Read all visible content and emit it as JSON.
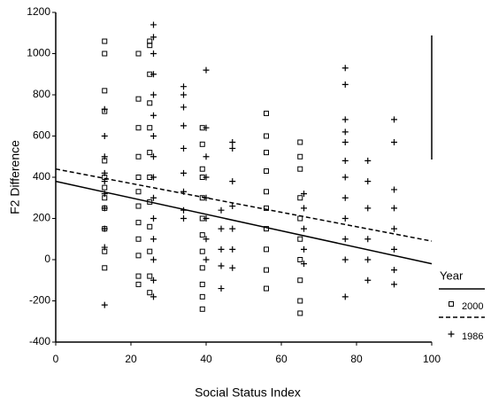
{
  "chart_data": {
    "type": "scatter",
    "x_label": "Social Status Index",
    "y_label": "F2 Difference",
    "legend_title": "Year",
    "xlim": [
      0,
      100
    ],
    "xticks": [
      0,
      20,
      40,
      60,
      80,
      100
    ],
    "ylim": [
      -400,
      1200
    ],
    "yticks": [
      -400,
      -200,
      0,
      200,
      400,
      600,
      800,
      1000,
      1200
    ],
    "series": [
      {
        "name": "2000",
        "color": "#000000",
        "marker": "square",
        "x": [
          13,
          13,
          13,
          13,
          13,
          13,
          13,
          13,
          13,
          13,
          13,
          13,
          22,
          22,
          22,
          22,
          22,
          22,
          22,
          22,
          22,
          22,
          22,
          22,
          25,
          25,
          25,
          25,
          25,
          25,
          25,
          25,
          25,
          25,
          25,
          25,
          39,
          39,
          39,
          39,
          39,
          39,
          39,
          39,
          39,
          39,
          39,
          39,
          56,
          56,
          56,
          56,
          56,
          56,
          56,
          56,
          56,
          56,
          65,
          65,
          65,
          65,
          65,
          65,
          65,
          65,
          65,
          65
        ],
        "values": [
          1060,
          1000,
          820,
          720,
          480,
          400,
          350,
          300,
          250,
          150,
          40,
          -40,
          1000,
          780,
          640,
          500,
          400,
          330,
          260,
          180,
          100,
          20,
          -80,
          -120,
          1060,
          1040,
          900,
          760,
          640,
          520,
          400,
          280,
          160,
          40,
          -80,
          -160,
          640,
          560,
          440,
          400,
          300,
          200,
          120,
          40,
          -40,
          -120,
          -180,
          -240,
          710,
          600,
          520,
          430,
          330,
          250,
          150,
          50,
          -50,
          -140,
          570,
          500,
          440,
          300,
          200,
          100,
          0,
          -100,
          -200,
          -260
        ]
      },
      {
        "name": "1986",
        "color": "#000000",
        "marker": "plus",
        "x": [
          13,
          13,
          13,
          13,
          13,
          13,
          13,
          13,
          13,
          13,
          26,
          26,
          26,
          26,
          26,
          26,
          26,
          26,
          26,
          26,
          26,
          26,
          26,
          26,
          26,
          34,
          34,
          34,
          34,
          34,
          34,
          34,
          34,
          34,
          40,
          40,
          40,
          40,
          40,
          40,
          40,
          40,
          44,
          44,
          44,
          44,
          44,
          47,
          47,
          47,
          47,
          47,
          47,
          47,
          66,
          66,
          66,
          66,
          66,
          77,
          77,
          77,
          77,
          77,
          77,
          77,
          77,
          77,
          77,
          77,
          77,
          83,
          83,
          83,
          83,
          83,
          83,
          90,
          90,
          90,
          90,
          90,
          90,
          90,
          90
        ],
        "values": [
          730,
          600,
          500,
          420,
          380,
          320,
          250,
          150,
          60,
          -220,
          1140,
          1080,
          1000,
          900,
          800,
          700,
          600,
          500,
          400,
          300,
          200,
          100,
          0,
          -100,
          -180,
          840,
          800,
          740,
          650,
          540,
          420,
          330,
          240,
          200,
          920,
          640,
          500,
          400,
          300,
          200,
          100,
          0,
          240,
          150,
          50,
          -30,
          -140,
          570,
          540,
          380,
          260,
          150,
          50,
          -40,
          320,
          250,
          150,
          50,
          -20,
          930,
          850,
          680,
          620,
          570,
          480,
          400,
          300,
          200,
          100,
          0,
          -180,
          480,
          380,
          250,
          100,
          0,
          -100,
          680,
          570,
          340,
          250,
          150,
          50,
          -50,
          -120
        ]
      }
    ],
    "fits": [
      {
        "series": 0,
        "style": "solid",
        "x": [
          0,
          100
        ],
        "values": [
          380,
          -20
        ]
      },
      {
        "series": 1,
        "style": "dashed",
        "x": [
          0,
          100
        ],
        "values": [
          440,
          90
        ]
      }
    ]
  }
}
